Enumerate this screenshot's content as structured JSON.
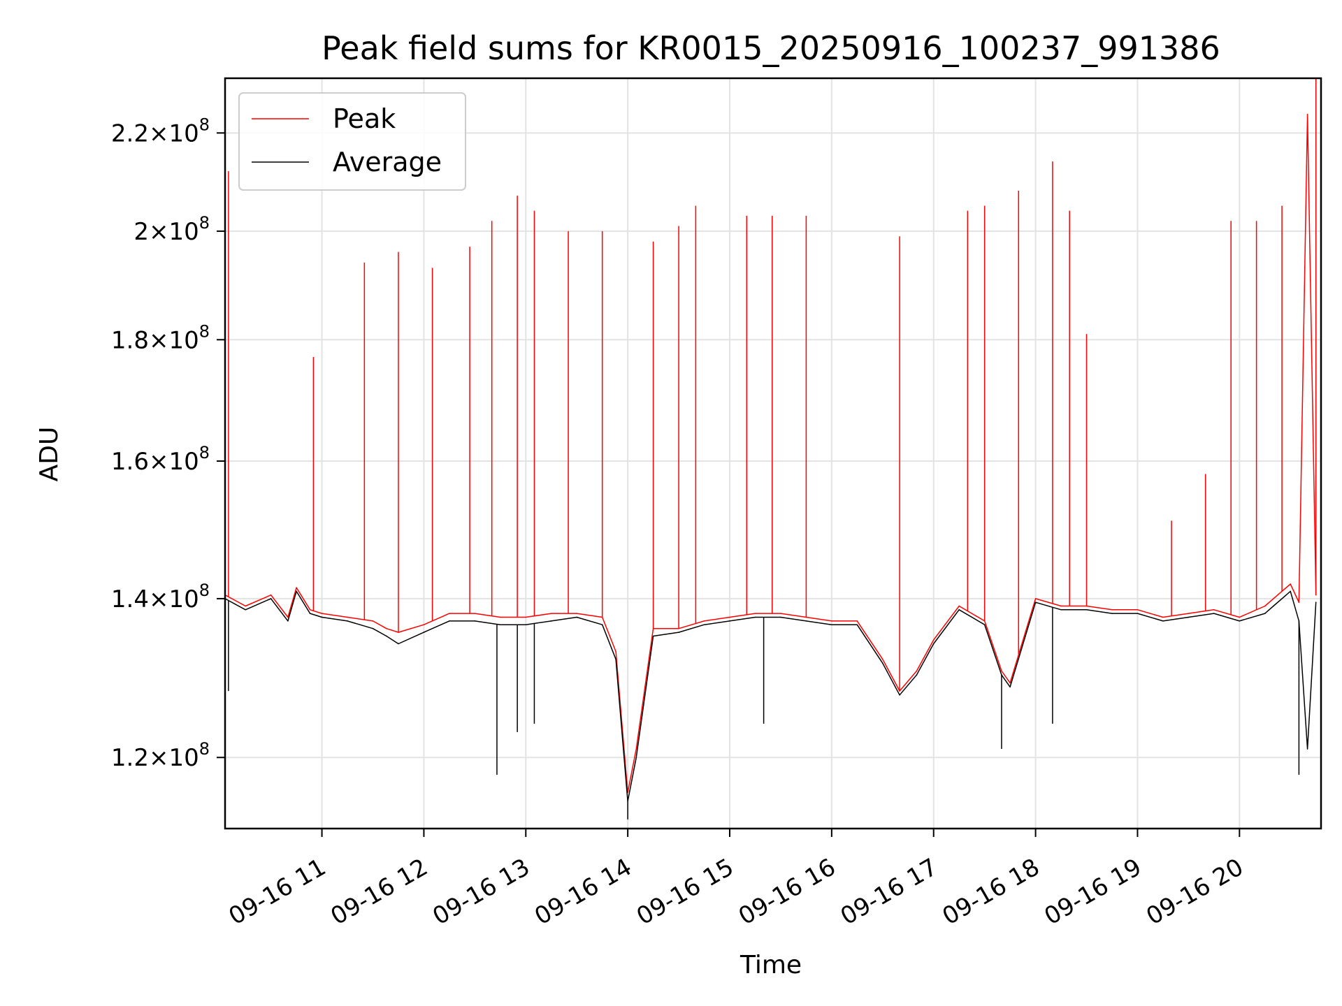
{
  "chart_data": {
    "type": "line",
    "title": "Peak field sums for KR0015_20250916_100237_991386",
    "xlabel": "Time",
    "ylabel": "ADU",
    "x_scale": "time",
    "y_scale": "log",
    "xlim": [
      "2025-09-16 10:03",
      "2025-09-16 20:48"
    ],
    "ylim": [
      112000000,
      232000000
    ],
    "x_ticks": [
      {
        "label": "09-16 11",
        "value": "2025-09-16 11:00"
      },
      {
        "label": "09-16 12",
        "value": "2025-09-16 12:00"
      },
      {
        "label": "09-16 13",
        "value": "2025-09-16 13:00"
      },
      {
        "label": "09-16 14",
        "value": "2025-09-16 14:00"
      },
      {
        "label": "09-16 15",
        "value": "2025-09-16 15:00"
      },
      {
        "label": "09-16 16",
        "value": "2025-09-16 16:00"
      },
      {
        "label": "09-16 17",
        "value": "2025-09-16 17:00"
      },
      {
        "label": "09-16 18",
        "value": "2025-09-16 18:00"
      },
      {
        "label": "09-16 19",
        "value": "2025-09-16 19:00"
      },
      {
        "label": "09-16 20",
        "value": "2025-09-16 20:00"
      }
    ],
    "y_ticks": [
      {
        "mantissa": "1.2",
        "exp": "8",
        "value": 120000000
      },
      {
        "mantissa": "1.4",
        "exp": "8",
        "value": 140000000
      },
      {
        "mantissa": "1.6",
        "exp": "8",
        "value": 160000000
      },
      {
        "mantissa": "1.8",
        "exp": "8",
        "value": 180000000
      },
      {
        "mantissa": "2",
        "exp": "8",
        "value": 200000000
      },
      {
        "mantissa": "2.2",
        "exp": "8",
        "value": 220000000
      }
    ],
    "grid": true,
    "legend_position": "top-left",
    "series": [
      {
        "name": "Peak",
        "color": "#ff0000",
        "x": [
          "2025-09-16 10:03",
          "2025-09-16 10:15",
          "2025-09-16 10:30",
          "2025-09-16 10:40",
          "2025-09-16 10:45",
          "2025-09-16 10:53",
          "2025-09-16 11:00",
          "2025-09-16 11:15",
          "2025-09-16 11:30",
          "2025-09-16 11:38",
          "2025-09-16 11:45",
          "2025-09-16 12:00",
          "2025-09-16 12:15",
          "2025-09-16 12:30",
          "2025-09-16 12:45",
          "2025-09-16 13:00",
          "2025-09-16 13:15",
          "2025-09-16 13:30",
          "2025-09-16 13:45",
          "2025-09-16 13:53",
          "2025-09-16 14:00",
          "2025-09-16 14:05",
          "2025-09-16 14:15",
          "2025-09-16 14:30",
          "2025-09-16 14:45",
          "2025-09-16 15:00",
          "2025-09-16 15:15",
          "2025-09-16 15:30",
          "2025-09-16 15:45",
          "2025-09-16 16:00",
          "2025-09-16 16:15",
          "2025-09-16 16:30",
          "2025-09-16 16:40",
          "2025-09-16 16:50",
          "2025-09-16 17:00",
          "2025-09-16 17:15",
          "2025-09-16 17:30",
          "2025-09-16 17:40",
          "2025-09-16 17:45",
          "2025-09-16 18:00",
          "2025-09-16 18:15",
          "2025-09-16 18:30",
          "2025-09-16 18:45",
          "2025-09-16 19:00",
          "2025-09-16 19:15",
          "2025-09-16 19:30",
          "2025-09-16 19:45",
          "2025-09-16 20:00",
          "2025-09-16 20:15",
          "2025-09-16 20:20",
          "2025-09-16 20:30",
          "2025-09-16 20:35",
          "2025-09-16 20:40",
          "2025-09-16 20:45"
        ],
        "y": [
          140500000,
          139000000,
          140500000,
          137500000,
          141500000,
          138500000,
          138000000,
          137500000,
          137000000,
          136000000,
          135500000,
          136500000,
          138000000,
          138000000,
          137500000,
          137500000,
          138000000,
          138000000,
          137500000,
          133000000,
          116000000,
          121000000,
          136000000,
          136000000,
          137000000,
          137500000,
          138000000,
          138000000,
          137500000,
          137000000,
          137000000,
          132000000,
          128000000,
          130500000,
          134500000,
          139000000,
          137000000,
          130500000,
          129000000,
          140000000,
          139000000,
          139000000,
          138500000,
          138500000,
          137500000,
          138000000,
          138500000,
          137500000,
          139000000,
          140000000,
          142000000,
          139500000,
          224000000,
          140500000
        ],
        "spikes": [
          {
            "x": "2025-09-16 10:05",
            "y": 212000000
          },
          {
            "x": "2025-09-16 10:55",
            "y": 177000000
          },
          {
            "x": "2025-09-16 11:25",
            "y": 194000000
          },
          {
            "x": "2025-09-16 11:45",
            "y": 196000000
          },
          {
            "x": "2025-09-16 12:05",
            "y": 193000000
          },
          {
            "x": "2025-09-16 12:27",
            "y": 197000000
          },
          {
            "x": "2025-09-16 12:40",
            "y": 202000000
          },
          {
            "x": "2025-09-16 12:55",
            "y": 207000000
          },
          {
            "x": "2025-09-16 13:05",
            "y": 204000000
          },
          {
            "x": "2025-09-16 13:25",
            "y": 200000000
          },
          {
            "x": "2025-09-16 13:45",
            "y": 200000000
          },
          {
            "x": "2025-09-16 14:15",
            "y": 198000000
          },
          {
            "x": "2025-09-16 14:30",
            "y": 201000000
          },
          {
            "x": "2025-09-16 14:40",
            "y": 205000000
          },
          {
            "x": "2025-09-16 15:10",
            "y": 203000000
          },
          {
            "x": "2025-09-16 15:25",
            "y": 203000000
          },
          {
            "x": "2025-09-16 15:45",
            "y": 203000000
          },
          {
            "x": "2025-09-16 16:40",
            "y": 199000000
          },
          {
            "x": "2025-09-16 17:20",
            "y": 204000000
          },
          {
            "x": "2025-09-16 17:30",
            "y": 205000000
          },
          {
            "x": "2025-09-16 17:50",
            "y": 208000000
          },
          {
            "x": "2025-09-16 18:10",
            "y": 214000000
          },
          {
            "x": "2025-09-16 18:20",
            "y": 204000000
          },
          {
            "x": "2025-09-16 18:30",
            "y": 181000000
          },
          {
            "x": "2025-09-16 19:20",
            "y": 151000000
          },
          {
            "x": "2025-09-16 19:40",
            "y": 158000000
          },
          {
            "x": "2025-09-16 19:55",
            "y": 202000000
          },
          {
            "x": "2025-09-16 20:10",
            "y": 202000000
          },
          {
            "x": "2025-09-16 20:25",
            "y": 205000000
          },
          {
            "x": "2025-09-16 20:45",
            "y": 232000000
          }
        ]
      },
      {
        "name": "Average",
        "color": "#000000",
        "x": [
          "2025-09-16 10:03",
          "2025-09-16 10:15",
          "2025-09-16 10:30",
          "2025-09-16 10:40",
          "2025-09-16 10:45",
          "2025-09-16 10:53",
          "2025-09-16 11:00",
          "2025-09-16 11:15",
          "2025-09-16 11:30",
          "2025-09-16 11:38",
          "2025-09-16 11:45",
          "2025-09-16 12:00",
          "2025-09-16 12:15",
          "2025-09-16 12:30",
          "2025-09-16 12:45",
          "2025-09-16 13:00",
          "2025-09-16 13:15",
          "2025-09-16 13:30",
          "2025-09-16 13:45",
          "2025-09-16 13:53",
          "2025-09-16 14:00",
          "2025-09-16 14:05",
          "2025-09-16 14:15",
          "2025-09-16 14:30",
          "2025-09-16 14:45",
          "2025-09-16 15:00",
          "2025-09-16 15:15",
          "2025-09-16 15:30",
          "2025-09-16 15:45",
          "2025-09-16 16:00",
          "2025-09-16 16:15",
          "2025-09-16 16:30",
          "2025-09-16 16:40",
          "2025-09-16 16:50",
          "2025-09-16 17:00",
          "2025-09-16 17:15",
          "2025-09-16 17:30",
          "2025-09-16 17:40",
          "2025-09-16 17:45",
          "2025-09-16 18:00",
          "2025-09-16 18:15",
          "2025-09-16 18:30",
          "2025-09-16 18:45",
          "2025-09-16 19:00",
          "2025-09-16 19:15",
          "2025-09-16 19:30",
          "2025-09-16 19:45",
          "2025-09-16 20:00",
          "2025-09-16 20:15",
          "2025-09-16 20:20",
          "2025-09-16 20:30",
          "2025-09-16 20:35",
          "2025-09-16 20:40",
          "2025-09-16 20:45"
        ],
        "y": [
          140000000,
          138500000,
          140000000,
          137000000,
          141000000,
          138000000,
          137500000,
          137000000,
          136000000,
          135000000,
          134000000,
          135500000,
          137000000,
          137000000,
          136500000,
          136500000,
          137000000,
          137500000,
          136500000,
          132000000,
          115000000,
          120000000,
          135000000,
          135500000,
          136500000,
          137000000,
          137500000,
          137500000,
          137000000,
          136500000,
          136500000,
          131500000,
          127500000,
          130000000,
          134000000,
          138500000,
          136500000,
          130000000,
          128500000,
          139500000,
          138500000,
          138500000,
          138000000,
          138000000,
          137000000,
          137500000,
          138000000,
          137000000,
          138000000,
          139000000,
          141000000,
          137000000,
          121000000,
          139500000
        ],
        "dips": [
          {
            "x": "2025-09-16 10:05",
            "y": 128000000
          },
          {
            "x": "2025-09-16 12:43",
            "y": 118000000
          },
          {
            "x": "2025-09-16 12:55",
            "y": 123000000
          },
          {
            "x": "2025-09-16 13:05",
            "y": 124000000
          },
          {
            "x": "2025-09-16 14:00",
            "y": 113000000
          },
          {
            "x": "2025-09-16 15:20",
            "y": 124000000
          },
          {
            "x": "2025-09-16 17:40",
            "y": 121000000
          },
          {
            "x": "2025-09-16 18:10",
            "y": 124000000
          },
          {
            "x": "2025-09-16 20:35",
            "y": 118000000
          }
        ]
      }
    ]
  }
}
